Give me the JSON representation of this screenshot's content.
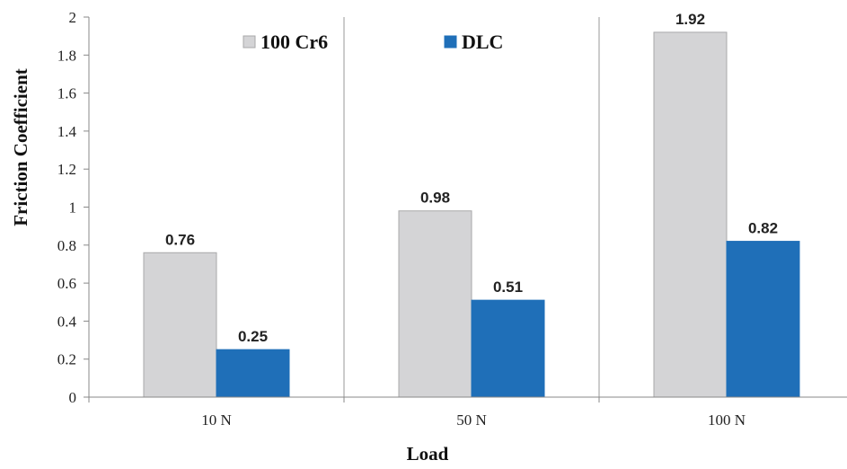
{
  "chart_data": {
    "type": "bar",
    "categories": [
      "10 N",
      "50 N",
      "100 N"
    ],
    "series": [
      {
        "name": "100 Cr6",
        "values": [
          0.76,
          0.98,
          1.92
        ],
        "color": "#d4d4d6"
      },
      {
        "name": "DLC",
        "values": [
          0.25,
          0.51,
          0.82
        ],
        "color": "#1f6fb8"
      }
    ],
    "data_labels": [
      [
        "0.76",
        "0.98",
        "1.92"
      ],
      [
        "0.25",
        "0.51",
        "0.82"
      ]
    ],
    "ylim": [
      0,
      2
    ],
    "yticks": [
      "0",
      "0.2",
      "0.4",
      "0.6",
      "0.8",
      "1",
      "1.2",
      "1.4",
      "1.6",
      "1.8",
      "2"
    ],
    "xlabel": "Load",
    "ylabel": "Friction Coefficient",
    "legend_position": "top-center",
    "grid": "vertical"
  }
}
